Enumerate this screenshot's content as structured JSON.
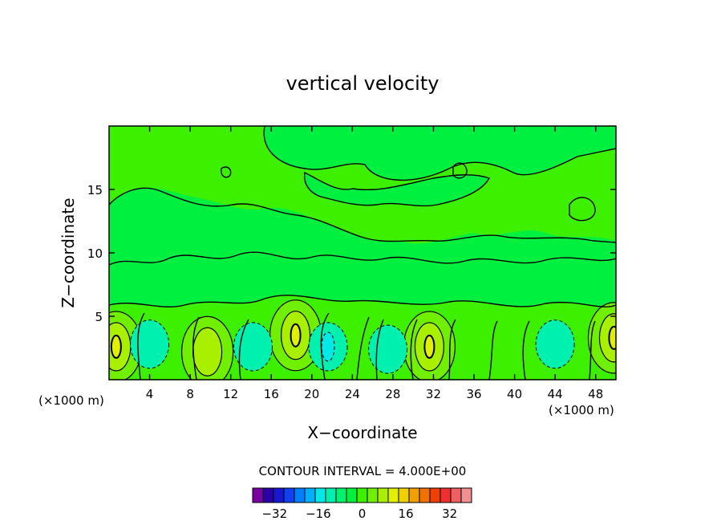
{
  "chart_data": {
    "type": "heatmap",
    "title": "vertical velocity",
    "xlabel": "X−coordinate",
    "ylabel": "Z−coordinate",
    "x_unit_left": "(×1000 m)",
    "x_unit_right": "(×1000 m)",
    "xlim": [
      0,
      50
    ],
    "ylim": [
      0,
      20
    ],
    "x_ticks": [
      4,
      8,
      12,
      16,
      20,
      24,
      28,
      32,
      36,
      40,
      44,
      48
    ],
    "y_ticks": [
      5,
      10,
      15
    ],
    "contour_interval_label": "CONTOUR INTERVAL = 4.000E+00",
    "colorbar_ticks": [
      "−32",
      "−16",
      "0",
      "16",
      "32"
    ],
    "colorbar_tick_values": [
      -32,
      -16,
      0,
      16,
      32
    ],
    "colorbar_range": [
      -40,
      40
    ],
    "colorbar_colors": [
      "#7a00a0",
      "#2a00a8",
      "#1818d0",
      "#1040f0",
      "#0080ff",
      "#00b0ff",
      "#00e8e8",
      "#00f0b0",
      "#00f070",
      "#00f040",
      "#3cf000",
      "#70f000",
      "#a8f000",
      "#e0f000",
      "#f0d000",
      "#f0a000",
      "#f07000",
      "#f04000",
      "#f03030",
      "#f06060",
      "#f09090"
    ],
    "plot_background": "#00f040",
    "features": [
      {
        "x": 0.7,
        "z": 2.6,
        "value": 12,
        "level": "high"
      },
      {
        "x": 9.7,
        "z": 2.2,
        "value": 8,
        "level": "high"
      },
      {
        "x": 18.4,
        "z": 3.5,
        "value": 12,
        "level": "high"
      },
      {
        "x": 31.6,
        "z": 2.6,
        "value": 12,
        "level": "high"
      },
      {
        "x": 49.8,
        "z": 3.3,
        "value": 12,
        "level": "high"
      },
      {
        "x": 4.0,
        "z": 2.8,
        "value": -4,
        "level": "low"
      },
      {
        "x": 14.2,
        "z": 2.6,
        "value": -4,
        "level": "low"
      },
      {
        "x": 21.6,
        "z": 2.6,
        "value": -8,
        "level": "low"
      },
      {
        "x": 27.5,
        "z": 2.4,
        "value": -4,
        "level": "low"
      },
      {
        "x": 44.0,
        "z": 2.8,
        "value": -4,
        "level": "low"
      }
    ]
  }
}
